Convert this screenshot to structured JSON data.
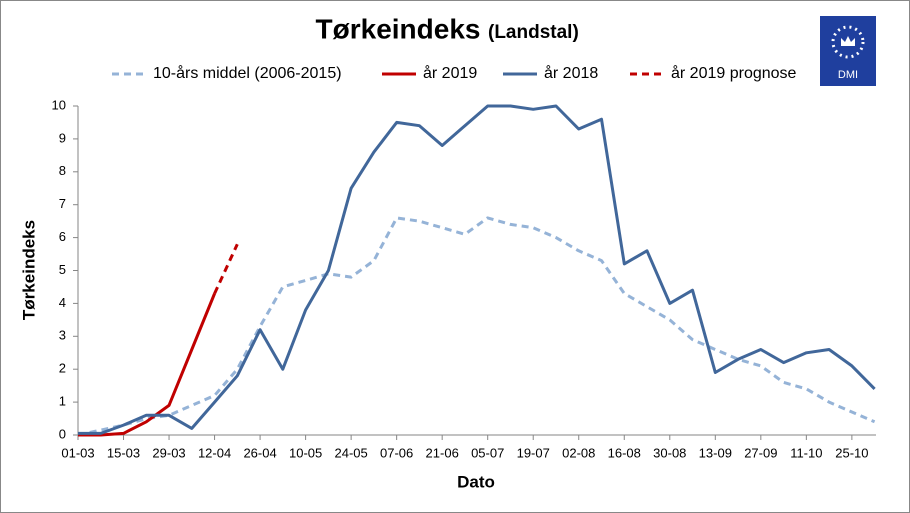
{
  "chart_data": {
    "type": "line",
    "title": "Tørkeindeks",
    "subtitle": "(Landstal)",
    "logo": "DMI",
    "x_label": "Dato",
    "y_label": "Tørkeindeks",
    "categories": [
      "01-03",
      null,
      "15-03",
      null,
      "29-03",
      null,
      "12-04",
      null,
      "26-04",
      null,
      "10-05",
      null,
      "24-05",
      null,
      "07-06",
      null,
      "21-06",
      null,
      "05-07",
      null,
      "19-07",
      null,
      "02-08",
      null,
      "16-08",
      null,
      "30-08",
      null,
      "13-09",
      null,
      "27-09",
      null,
      "11-10",
      null,
      "25-10",
      null
    ],
    "ylim": [
      0,
      10
    ],
    "yticks": [
      0,
      1,
      2,
      3,
      4,
      5,
      6,
      7,
      8,
      9,
      10
    ],
    "grid": false,
    "legend": "top",
    "series": [
      {
        "name": "10-års middel (2006-2015)",
        "color": "#95b3d7",
        "style": "dashed",
        "values": [
          0.0,
          0.15,
          0.3,
          0.5,
          0.6,
          0.9,
          1.2,
          2.0,
          3.3,
          4.5,
          4.7,
          4.9,
          4.8,
          5.3,
          6.6,
          6.5,
          6.3,
          6.1,
          6.6,
          6.4,
          6.3,
          6.0,
          5.6,
          5.3,
          4.3,
          3.9,
          3.5,
          2.9,
          2.6,
          2.3,
          2.1,
          1.6,
          1.4,
          1.0,
          0.7,
          0.4
        ]
      },
      {
        "name": "år 2019",
        "color": "#c00000",
        "style": "solid",
        "values": [
          0,
          0,
          0.05,
          0.4,
          0.9,
          2.6,
          4.3,
          null,
          null,
          null,
          null,
          null,
          null,
          null,
          null,
          null,
          null,
          null,
          null,
          null,
          null,
          null,
          null,
          null,
          null,
          null,
          null,
          null,
          null,
          null,
          null,
          null,
          null,
          null,
          null,
          null
        ]
      },
      {
        "name": "år 2018",
        "color": "#41679a",
        "style": "solid",
        "values": [
          0.05,
          0.05,
          0.3,
          0.6,
          0.6,
          0.2,
          1.0,
          1.8,
          3.2,
          2.0,
          3.8,
          5.0,
          7.5,
          8.6,
          9.5,
          9.4,
          8.8,
          9.4,
          10,
          10,
          9.9,
          10,
          9.3,
          9.6,
          5.2,
          5.6,
          4.0,
          4.4,
          1.9,
          2.3,
          2.6,
          2.2,
          2.5,
          2.6,
          2.1,
          1.4
        ]
      },
      {
        "name": "år 2019 prognose",
        "color": "#c00000",
        "style": "dashed",
        "values": [
          null,
          null,
          null,
          null,
          null,
          null,
          4.3,
          5.8,
          null,
          null,
          null,
          null,
          null,
          null,
          null,
          null,
          null,
          null,
          null,
          null,
          null,
          null,
          null,
          null,
          null,
          null,
          null,
          null,
          null,
          null,
          null,
          null,
          null,
          null,
          null,
          null
        ]
      }
    ]
  }
}
